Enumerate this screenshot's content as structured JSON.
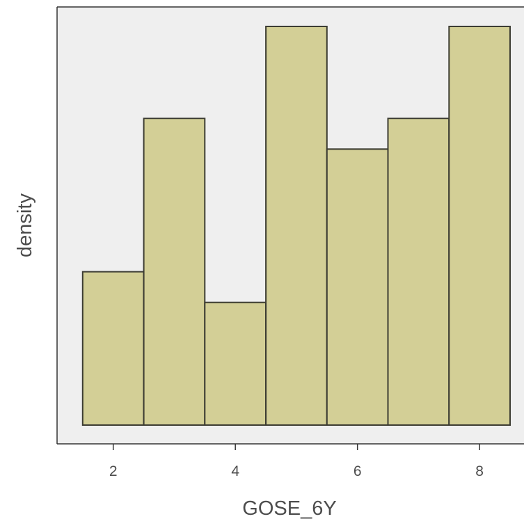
{
  "chart_data": {
    "type": "histogram",
    "xlabel": "GOSE_6Y",
    "ylabel": "density",
    "xlim": [
      1.08,
      8.5
    ],
    "ylim": [
      0,
      0.14
    ],
    "x_ticks": [
      2,
      4,
      6,
      8
    ],
    "y_ticks_shown": false,
    "grid": false,
    "legend": "none",
    "bin_width": 1,
    "bins": [
      {
        "x_center": 2,
        "x_start": 1.5,
        "x_end": 2.5,
        "density": 0.0505
      },
      {
        "x_center": 3,
        "x_start": 2.5,
        "x_end": 3.5,
        "density": 0.101
      },
      {
        "x_center": 4,
        "x_start": 3.5,
        "x_end": 4.5,
        "density": 0.0404
      },
      {
        "x_center": 5,
        "x_start": 4.5,
        "x_end": 5.5,
        "density": 0.1313
      },
      {
        "x_center": 6,
        "x_start": 5.5,
        "x_end": 6.5,
        "density": 0.0909
      },
      {
        "x_center": 7,
        "x_start": 6.5,
        "x_end": 7.5,
        "density": 0.101
      },
      {
        "x_center": 8,
        "x_start": 7.5,
        "x_end": 8.5,
        "density": 0.1313
      }
    ],
    "colors": {
      "bar_fill": "#d3cf96",
      "bar_stroke": "#3c3c32",
      "panel_background": "#efefef"
    }
  }
}
